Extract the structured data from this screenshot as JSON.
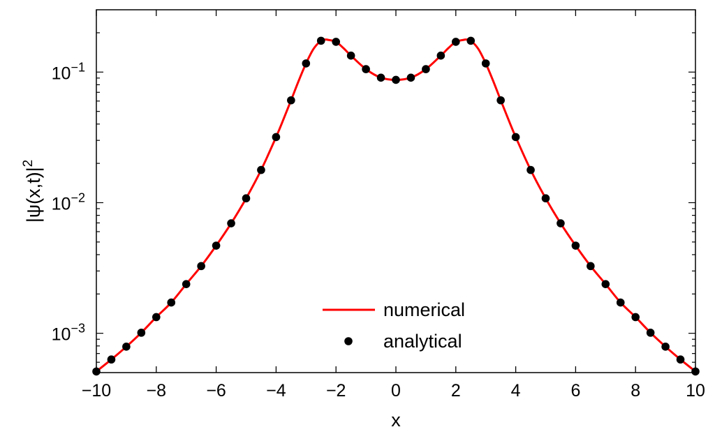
{
  "chart_data": {
    "type": "line",
    "xlabel": "x",
    "ylabel_base": "|ψ(x,t)|",
    "ylabel_exp": "2",
    "xlim": [
      -10,
      10
    ],
    "ylim": [
      0.0005,
      0.3
    ],
    "yscale": "log",
    "grid": false,
    "legend_position": "bottom-center",
    "x_ticks": [
      -10,
      -8,
      -6,
      -4,
      -2,
      0,
      2,
      4,
      6,
      8,
      10
    ],
    "x_tick_labels": [
      "−10",
      "−8",
      "−6",
      "−4",
      "−2",
      "0",
      "2",
      "4",
      "6",
      "8",
      "10"
    ],
    "y_ticks": [
      {
        "value": 0.1,
        "base": "10",
        "exp": "−1"
      },
      {
        "value": 0.01,
        "base": "10",
        "exp": "−2"
      },
      {
        "value": 0.001,
        "base": "10",
        "exp": "−3"
      }
    ],
    "series": [
      {
        "name": "numerical",
        "kind": "line",
        "color": "#ff0000",
        "x": [
          -10,
          -9.5,
          -9,
          -8.5,
          -8,
          -7.5,
          -7,
          -6.5,
          -6,
          -5.5,
          -5,
          -4.5,
          -4,
          -3.75,
          -3.5,
          -3.25,
          -3,
          -2.75,
          -2.5,
          -2.35,
          -2.25,
          -2,
          -1.75,
          -1.5,
          -1,
          -0.5,
          0,
          0.5,
          1,
          1.5,
          1.75,
          2,
          2.25,
          2.35,
          2.5,
          2.75,
          3,
          3.25,
          3.5,
          3.75,
          4,
          4.5,
          5,
          5.5,
          6,
          6.5,
          7,
          7.5,
          8,
          8.5,
          9,
          9.5,
          10
        ],
        "y": [
          0.00051,
          0.00063,
          0.00079,
          0.00101,
          0.00133,
          0.00172,
          0.00238,
          0.00327,
          0.00469,
          0.00695,
          0.0108,
          0.0178,
          0.0318,
          0.0437,
          0.0608,
          0.0852,
          0.1165,
          0.1505,
          0.1738,
          0.1775,
          0.1762,
          0.1705,
          0.1525,
          0.1337,
          0.1053,
          0.0906,
          0.0872,
          0.0906,
          0.1053,
          0.1337,
          0.1525,
          0.1705,
          0.1762,
          0.1775,
          0.1738,
          0.1505,
          0.1165,
          0.0852,
          0.0608,
          0.0437,
          0.0318,
          0.0178,
          0.0108,
          0.00695,
          0.00469,
          0.00327,
          0.00238,
          0.00172,
          0.00133,
          0.00101,
          0.00079,
          0.00063,
          0.00051
        ]
      },
      {
        "name": "analytical",
        "kind": "scatter",
        "color": "#000000",
        "x": [
          -10,
          -9.5,
          -9,
          -8.5,
          -8,
          -7.5,
          -7,
          -6.5,
          -6,
          -5.5,
          -5,
          -4.5,
          -4,
          -3.5,
          -3,
          -2.5,
          -2,
          -1.5,
          -1,
          -0.5,
          0,
          0.5,
          1,
          1.5,
          2,
          2.5,
          3,
          3.5,
          4,
          4.5,
          5,
          5.5,
          6,
          6.5,
          7,
          7.5,
          8,
          8.5,
          9,
          9.5,
          10
        ],
        "y": [
          0.00051,
          0.00063,
          0.00079,
          0.00101,
          0.00133,
          0.00172,
          0.00238,
          0.00327,
          0.00469,
          0.00695,
          0.0108,
          0.0178,
          0.0318,
          0.0608,
          0.1165,
          0.1738,
          0.1705,
          0.1337,
          0.1053,
          0.0906,
          0.0872,
          0.0906,
          0.1053,
          0.1337,
          0.1705,
          0.1738,
          0.1165,
          0.0608,
          0.0318,
          0.0178,
          0.0108,
          0.00695,
          0.00469,
          0.00327,
          0.00238,
          0.00172,
          0.00133,
          0.00101,
          0.00079,
          0.00063,
          0.00051
        ]
      }
    ]
  }
}
